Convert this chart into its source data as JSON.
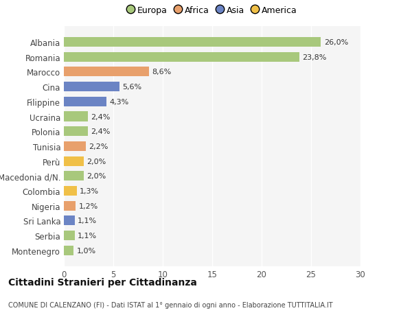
{
  "categories": [
    "Montenegro",
    "Serbia",
    "Sri Lanka",
    "Nigeria",
    "Colombia",
    "Macedonia d/N.",
    "Perù",
    "Tunisia",
    "Polonia",
    "Ucraina",
    "Filippine",
    "Cina",
    "Marocco",
    "Romania",
    "Albania"
  ],
  "values": [
    1.0,
    1.1,
    1.1,
    1.2,
    1.3,
    2.0,
    2.0,
    2.2,
    2.4,
    2.4,
    4.3,
    5.6,
    8.6,
    23.8,
    26.0
  ],
  "colors": [
    "#a8c87c",
    "#a8c87c",
    "#6b84c4",
    "#e8a06c",
    "#f0c048",
    "#a8c87c",
    "#f0c048",
    "#e8a06c",
    "#a8c87c",
    "#a8c87c",
    "#6b84c4",
    "#6b84c4",
    "#e8a06c",
    "#a8c87c",
    "#a8c87c"
  ],
  "labels": [
    "1,0%",
    "1,1%",
    "1,1%",
    "1,2%",
    "1,3%",
    "2,0%",
    "2,0%",
    "2,2%",
    "2,4%",
    "2,4%",
    "4,3%",
    "5,6%",
    "8,6%",
    "23,8%",
    "26,0%"
  ],
  "legend_labels": [
    "Europa",
    "Africa",
    "Asia",
    "America"
  ],
  "legend_colors": [
    "#a8c87c",
    "#e8a06c",
    "#6b84c4",
    "#f0c048"
  ],
  "title": "Cittadini Stranieri per Cittadinanza",
  "subtitle": "COMUNE DI CALENZANO (FI) - Dati ISTAT al 1° gennaio di ogni anno - Elaborazione TUTTITALIA.IT",
  "xlim": [
    0,
    30
  ],
  "xticks": [
    0,
    5,
    10,
    15,
    20,
    25,
    30
  ],
  "bg_color": "#ffffff",
  "plot_bg_color": "#f5f5f5",
  "grid_color": "#ffffff"
}
